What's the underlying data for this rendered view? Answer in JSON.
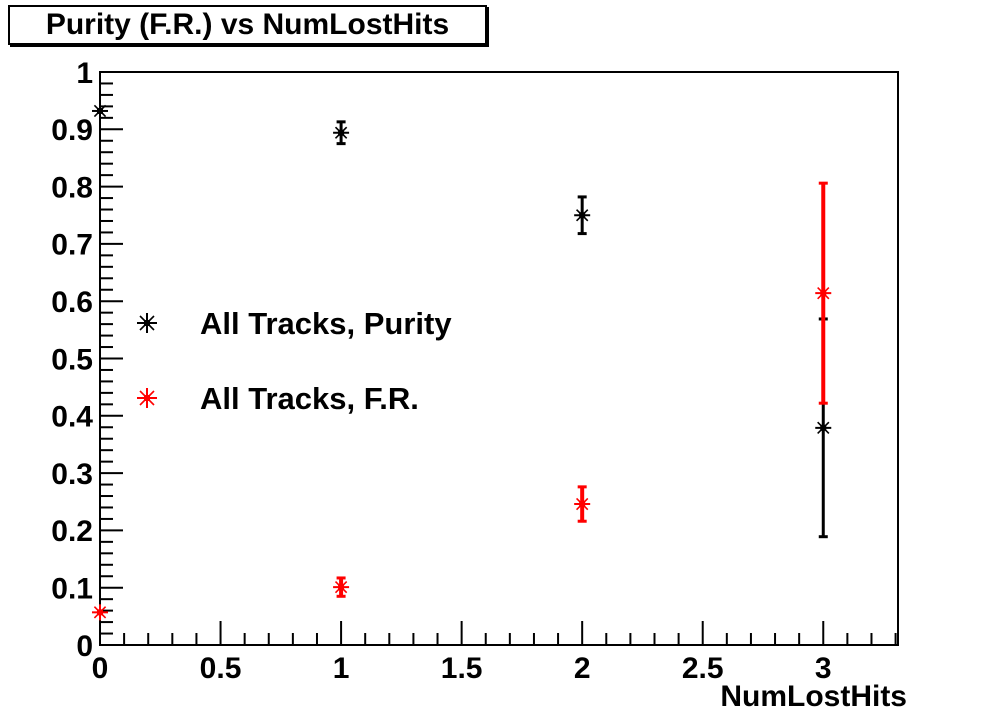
{
  "title": "Purity (F.R.) vs NumLostHits",
  "chart_data": {
    "type": "scatter",
    "title": "Purity (F.R.) vs NumLostHits",
    "xlabel": "NumLostHits",
    "ylabel": "",
    "xlim": [
      0,
      3.31
    ],
    "ylim": [
      0,
      1
    ],
    "grid": false,
    "x_major_ticks": [
      0,
      0.5,
      1,
      1.5,
      2,
      2.5,
      3
    ],
    "x_tick_labels": [
      "0",
      "0.5",
      "1",
      "1.5",
      "2",
      "2.5",
      "3"
    ],
    "x_minor_step": 0.1,
    "y_major_ticks": [
      0,
      0.1,
      0.2,
      0.3,
      0.4,
      0.5,
      0.6,
      0.7,
      0.8,
      0.9,
      1
    ],
    "y_tick_labels": [
      "0",
      "0.1",
      "0.2",
      "0.3",
      "0.4",
      "0.5",
      "0.6",
      "0.7",
      "0.8",
      "0.9",
      "1"
    ],
    "y_minor_step": 0.02,
    "legend_position": "inside-left",
    "series": [
      {
        "name": "All Tracks, Purity",
        "color": "#000000",
        "marker": "asterisk",
        "x": [
          0,
          1,
          2,
          3
        ],
        "y": [
          0.932,
          0.894,
          0.75,
          0.379
        ],
        "yerr": [
          0.005,
          0.019,
          0.032,
          0.19
        ]
      },
      {
        "name": "All Tracks, F.R.",
        "color": "#ff0000",
        "marker": "asterisk",
        "x": [
          0,
          1,
          2,
          3
        ],
        "y": [
          0.057,
          0.101,
          0.246,
          0.614
        ],
        "yerr": [
          0.005,
          0.016,
          0.03,
          0.192
        ]
      }
    ],
    "legend": [
      {
        "label": "All Tracks, Purity",
        "color": "#000000"
      },
      {
        "label": "All Tracks, F.R.",
        "color": "#ff0000"
      }
    ]
  },
  "colors": {
    "background": "#ffffff",
    "frame": "#000000",
    "series_purity": "#000000",
    "series_fr": "#ff0000"
  }
}
